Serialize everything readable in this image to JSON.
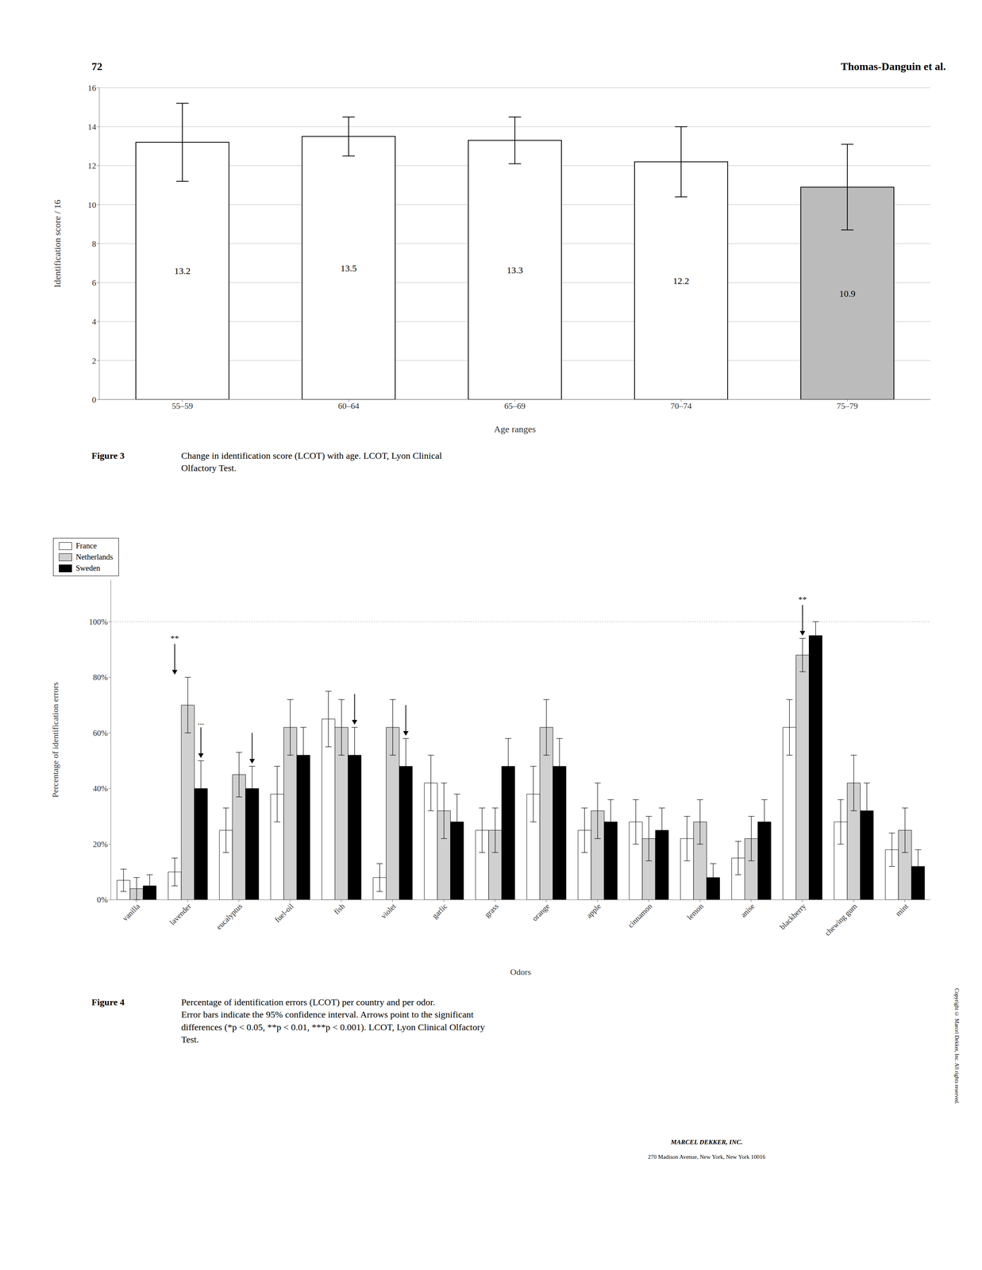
{
  "chart_data": [
    {
      "type": "bar",
      "xlabel": "Age ranges",
      "ylabel": "Identification score / 16",
      "categories": [
        "55–59",
        "60–64",
        "65–69",
        "70–74",
        "75–79"
      ],
      "values": [
        13.2,
        13.5,
        13.3,
        12.2,
        10.9
      ],
      "errors_lower": [
        2.0,
        1.0,
        1.2,
        1.8,
        2.2
      ],
      "errors_upper": [
        2.0,
        1.0,
        1.2,
        1.8,
        2.2
      ],
      "colors": [
        "#ffffff",
        "#ffffff",
        "#ffffff",
        "#ffffff",
        "#bbbbbb"
      ],
      "ylim": [
        0,
        16
      ],
      "yticks": [
        0,
        2,
        4,
        6,
        8,
        10,
        12,
        14,
        16
      ],
      "grid": true,
      "data_labels": true,
      "caption_label": "Figure 3",
      "caption": "Change in identification score (LCOT) with age. LCOT, Lyon Clinical\nOlfactory Test."
    },
    {
      "type": "bar",
      "xlabel": "Odors",
      "ylabel": "Percentage of identification errors",
      "categories": [
        "vanilla",
        "lavender",
        "eucalyptus",
        "fuel-oil",
        "fish",
        "violet",
        "garlic",
        "grass",
        "orange",
        "apple",
        "cinnamon",
        "lemon",
        "anise",
        "blackberry",
        "chewing gum",
        "mint"
      ],
      "series": [
        {
          "name": "France",
          "color": "#ffffff",
          "values": [
            7,
            10,
            25,
            38,
            65,
            8,
            42,
            25,
            38,
            25,
            28,
            22,
            15,
            62,
            28,
            18
          ],
          "errors": [
            4,
            5,
            8,
            10,
            10,
            5,
            10,
            8,
            10,
            8,
            8,
            8,
            6,
            10,
            8,
            6
          ]
        },
        {
          "name": "Netherlands",
          "color": "#d0d0d0",
          "values": [
            4,
            70,
            45,
            62,
            62,
            62,
            32,
            25,
            62,
            32,
            22,
            28,
            22,
            88,
            42,
            25
          ],
          "errors": [
            4,
            10,
            8,
            10,
            10,
            10,
            10,
            8,
            10,
            10,
            8,
            8,
            8,
            6,
            10,
            8
          ]
        },
        {
          "name": "Sweden",
          "color": "#000000",
          "values": [
            5,
            40,
            40,
            52,
            52,
            48,
            28,
            48,
            48,
            28,
            25,
            8,
            28,
            95,
            32,
            12
          ],
          "errors": [
            4,
            10,
            8,
            10,
            10,
            10,
            10,
            10,
            10,
            8,
            8,
            5,
            8,
            5,
            10,
            6
          ]
        }
      ],
      "ylim": [
        0,
        115
      ],
      "yticks": [
        {
          "value": 0,
          "label": "0%"
        },
        {
          "value": 20,
          "label": "20%"
        },
        {
          "value": 40,
          "label": "40%"
        },
        {
          "value": 60,
          "label": "60%"
        },
        {
          "value": 80,
          "label": "80%"
        },
        {
          "value": 100,
          "label": "100%"
        }
      ],
      "grid": false,
      "legend": "upper right",
      "hline": 100,
      "annotations": [
        {
          "text": "**",
          "category": "lavender",
          "series": "France",
          "y": 93
        },
        {
          "text": "...",
          "category": "lavender",
          "series": "Sweden",
          "y": 63
        },
        {
          "text": "**",
          "category": "blackberry",
          "series": "Netherlands",
          "y": 107
        }
      ],
      "arrows": [
        {
          "category": "lavender",
          "series": "France",
          "y_from": 92,
          "y_to": 81
        },
        {
          "category": "lavender",
          "series": "Sweden",
          "y_from": 62,
          "y_to": 51
        },
        {
          "category": "eucalyptus",
          "series": "Sweden",
          "y_from": 60,
          "y_to": 49
        },
        {
          "category": "fish",
          "series": "Sweden",
          "y_from": 74,
          "y_to": 63
        },
        {
          "category": "violet",
          "series": "Sweden",
          "y_from": 70,
          "y_to": 59
        },
        {
          "category": "blackberry",
          "series": "Netherlands",
          "y_from": 106,
          "y_to": 95
        }
      ],
      "caption_label": "Figure 4",
      "caption": "Percentage of identification errors (LCOT) per country and per odor.\nError bars indicate the 95% confidence interval. Arrows point to the significant\ndifferences (*p < 0.05, **p < 0.01, ***p < 0.001). LCOT, Lyon Clinical Olfactory\nTest."
    }
  ],
  "page_texts": {
    "header_left": "72",
    "header_right": "Thomas-Danguin et al.",
    "footer_title": "MARCEL DEKKER, INC.",
    "footer_address": "270 Madison Avenue, New York, New York 10016",
    "side_note": "Copyright © Marcel Dekker, Inc. All rights reserved."
  }
}
